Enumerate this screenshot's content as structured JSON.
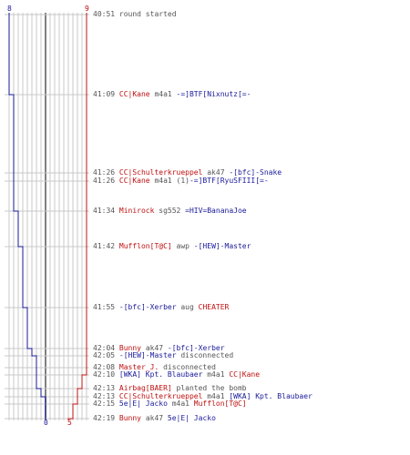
{
  "colors": {
    "team_blue": "#1a1a9a",
    "team_red": "#c01010",
    "neutral": "#555555",
    "gridline": "#c8c8c8",
    "center_line": "#808080"
  },
  "axis": {
    "blue_start": "8",
    "red_start": "9",
    "blue_end": "0",
    "red_end": "5"
  },
  "chart_data": {
    "type": "line",
    "series": [
      {
        "color": "#1a1a9a",
        "levels": [
          8,
          7,
          6,
          5,
          4,
          3,
          2,
          1,
          0
        ]
      },
      {
        "color": "#c01010",
        "levels": [
          9,
          8,
          7,
          6,
          5
        ]
      }
    ],
    "steps_blue_at_events": [
      1,
      4,
      5,
      6,
      7,
      8,
      11,
      12
    ],
    "steps_red_at_events": [
      10,
      11,
      13,
      14
    ]
  },
  "events": [
    {
      "time": "40:51",
      "parts": [
        {
          "t": "round started",
          "c": "grey"
        }
      ]
    },
    {
      "time": "41:09",
      "parts": [
        {
          "t": "CC|Kane",
          "c": "red"
        },
        {
          "t": " m4a1 ",
          "c": "grey"
        },
        {
          "t": "-=]BTF[Nixnutz[=-",
          "c": "blue"
        }
      ]
    },
    {
      "time": "41:26",
      "parts": [
        {
          "t": "CC|Schulterkrueppel",
          "c": "red"
        },
        {
          "t": " ak47 ",
          "c": "grey"
        },
        {
          "t": "-[bfc]-Snake",
          "c": "blue"
        }
      ]
    },
    {
      "time": "41:26",
      "parts": [
        {
          "t": "CC|Kane",
          "c": "red"
        },
        {
          "t": " m4a1 (1)",
          "c": "grey"
        },
        {
          "t": "-=]BTF[RyuSFIII[=-",
          "c": "blue"
        }
      ]
    },
    {
      "time": "41:34",
      "parts": [
        {
          "t": "Minirock",
          "c": "red"
        },
        {
          "t": " sg552 ",
          "c": "grey"
        },
        {
          "t": "=HIV=BananaJoe",
          "c": "blue"
        }
      ]
    },
    {
      "time": "41:42",
      "parts": [
        {
          "t": "Mufflon[T@C]",
          "c": "red"
        },
        {
          "t": " awp ",
          "c": "grey"
        },
        {
          "t": "-[HEW]-Master",
          "c": "blue"
        }
      ]
    },
    {
      "time": "41:55",
      "parts": [
        {
          "t": "-[bfc]-Xerber",
          "c": "blue"
        },
        {
          "t": " aug ",
          "c": "grey"
        },
        {
          "t": "CHEATER",
          "c": "red"
        }
      ]
    },
    {
      "time": "42:04",
      "parts": [
        {
          "t": "Bunny",
          "c": "red"
        },
        {
          "t": " ak47 ",
          "c": "grey"
        },
        {
          "t": "-[bfc]-Xerber",
          "c": "blue"
        }
      ]
    },
    {
      "time": "42:05",
      "parts": [
        {
          "t": "-[HEW]-Master",
          "c": "blue"
        },
        {
          "t": " disconnected",
          "c": "grey"
        }
      ]
    },
    {
      "time": "42:08",
      "parts": [
        {
          "t": "Master_J.",
          "c": "red"
        },
        {
          "t": " disconnected",
          "c": "grey"
        }
      ]
    },
    {
      "time": "42:10",
      "parts": [
        {
          "t": "[WKA] Kpt. Blaubaer",
          "c": "blue"
        },
        {
          "t": " m4a1 ",
          "c": "grey"
        },
        {
          "t": "CC|Kane",
          "c": "red"
        }
      ]
    },
    {
      "time": "42:13",
      "parts": [
        {
          "t": "Airbag[BAER]",
          "c": "red"
        },
        {
          "t": " planted the bomb",
          "c": "grey"
        }
      ]
    },
    {
      "time": "42:13",
      "parts": [
        {
          "t": "CC|Schulterkrueppel",
          "c": "red"
        },
        {
          "t": " m4a1 ",
          "c": "grey"
        },
        {
          "t": "[WKA] Kpt. Blaubaer",
          "c": "blue"
        }
      ]
    },
    {
      "time": "42:15",
      "parts": [
        {
          "t": "5e|E| Jacko",
          "c": "blue"
        },
        {
          "t": " m4a1 ",
          "c": "grey"
        },
        {
          "t": "Mufflon[T@C]",
          "c": "red"
        }
      ]
    },
    {
      "time": "42:19",
      "parts": [
        {
          "t": "Bunny",
          "c": "red"
        },
        {
          "t": " ak47 ",
          "c": "grey"
        },
        {
          "t": "5e|E| Jacko",
          "c": "blue"
        }
      ]
    }
  ]
}
